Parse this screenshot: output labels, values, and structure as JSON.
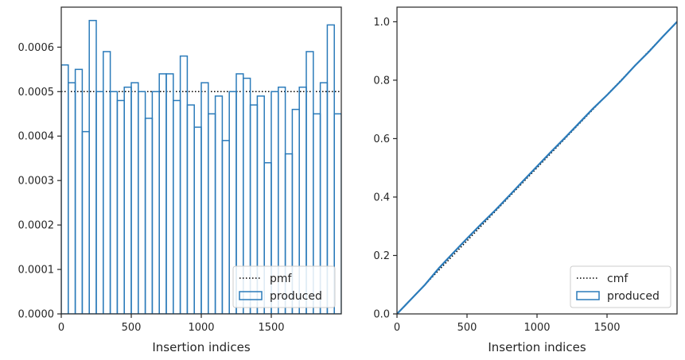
{
  "chart_data": [
    {
      "type": "step",
      "xlabel": "Insertion indices",
      "ylabel": "",
      "xlim": [
        0,
        2000
      ],
      "ylim": [
        0,
        0.00069
      ],
      "xticks": [
        0,
        500,
        1000,
        1500
      ],
      "yticks": [
        0,
        0.0001,
        0.0002,
        0.0003,
        0.0004,
        0.0005,
        0.0006
      ],
      "ytick_labels": [
        "0.0000",
        "0.0001",
        "0.0002",
        "0.0003",
        "0.0004",
        "0.0005",
        "0.0006"
      ],
      "grid": false,
      "legend_position": "bottom-right",
      "reference": {
        "name": "pmf",
        "value": 0.0005,
        "style": "dotted",
        "color": "#000000"
      },
      "series": [
        {
          "name": "produced",
          "color": "#2b7bba",
          "bin_width": 50,
          "x": [
            0,
            50,
            100,
            150,
            200,
            250,
            300,
            350,
            400,
            450,
            500,
            550,
            600,
            650,
            700,
            750,
            800,
            850,
            900,
            950,
            1000,
            1050,
            1100,
            1150,
            1200,
            1250,
            1300,
            1350,
            1400,
            1450,
            1500,
            1550,
            1600,
            1650,
            1700,
            1750,
            1800,
            1850,
            1900,
            1950
          ],
          "values": [
            0.00056,
            0.00052,
            0.00055,
            0.00041,
            0.00066,
            0.0005,
            0.00059,
            0.0005,
            0.00048,
            0.00051,
            0.00052,
            0.0005,
            0.00044,
            0.0005,
            0.00054,
            0.00054,
            0.00048,
            0.00058,
            0.00047,
            0.00042,
            0.00052,
            0.00045,
            0.00049,
            0.00039,
            0.0005,
            0.00054,
            0.00053,
            0.00047,
            0.00049,
            0.00034,
            0.0005,
            0.00051,
            0.00036,
            0.00046,
            0.00051,
            0.00059,
            0.00045,
            0.00052,
            0.00065,
            0.00045
          ]
        }
      ]
    },
    {
      "type": "line",
      "xlabel": "Insertion indices",
      "ylabel": "",
      "xlim": [
        0,
        2000
      ],
      "ylim": [
        0,
        1.05
      ],
      "xticks": [
        0,
        500,
        1000,
        1500
      ],
      "yticks": [
        0,
        0.2,
        0.4,
        0.6,
        0.8,
        1.0
      ],
      "ytick_labels": [
        "0.0",
        "0.2",
        "0.4",
        "0.6",
        "0.8",
        "1.0"
      ],
      "grid": false,
      "legend_position": "bottom-right",
      "series": [
        {
          "name": "cmf",
          "style": "dotted",
          "color": "#000000",
          "x": [
            0,
            2000
          ],
          "y": [
            0,
            1.0
          ]
        },
        {
          "name": "produced",
          "color": "#2b7bba",
          "x": [
            0,
            100,
            200,
            300,
            400,
            500,
            600,
            700,
            800,
            900,
            1000,
            1100,
            1200,
            1300,
            1400,
            1500,
            1600,
            1700,
            1800,
            1900,
            2000
          ],
          "y": [
            0,
            0.05,
            0.1,
            0.157,
            0.208,
            0.258,
            0.307,
            0.354,
            0.404,
            0.455,
            0.505,
            0.555,
            0.603,
            0.653,
            0.703,
            0.749,
            0.798,
            0.85,
            0.898,
            0.95,
            1.0
          ]
        }
      ]
    }
  ]
}
